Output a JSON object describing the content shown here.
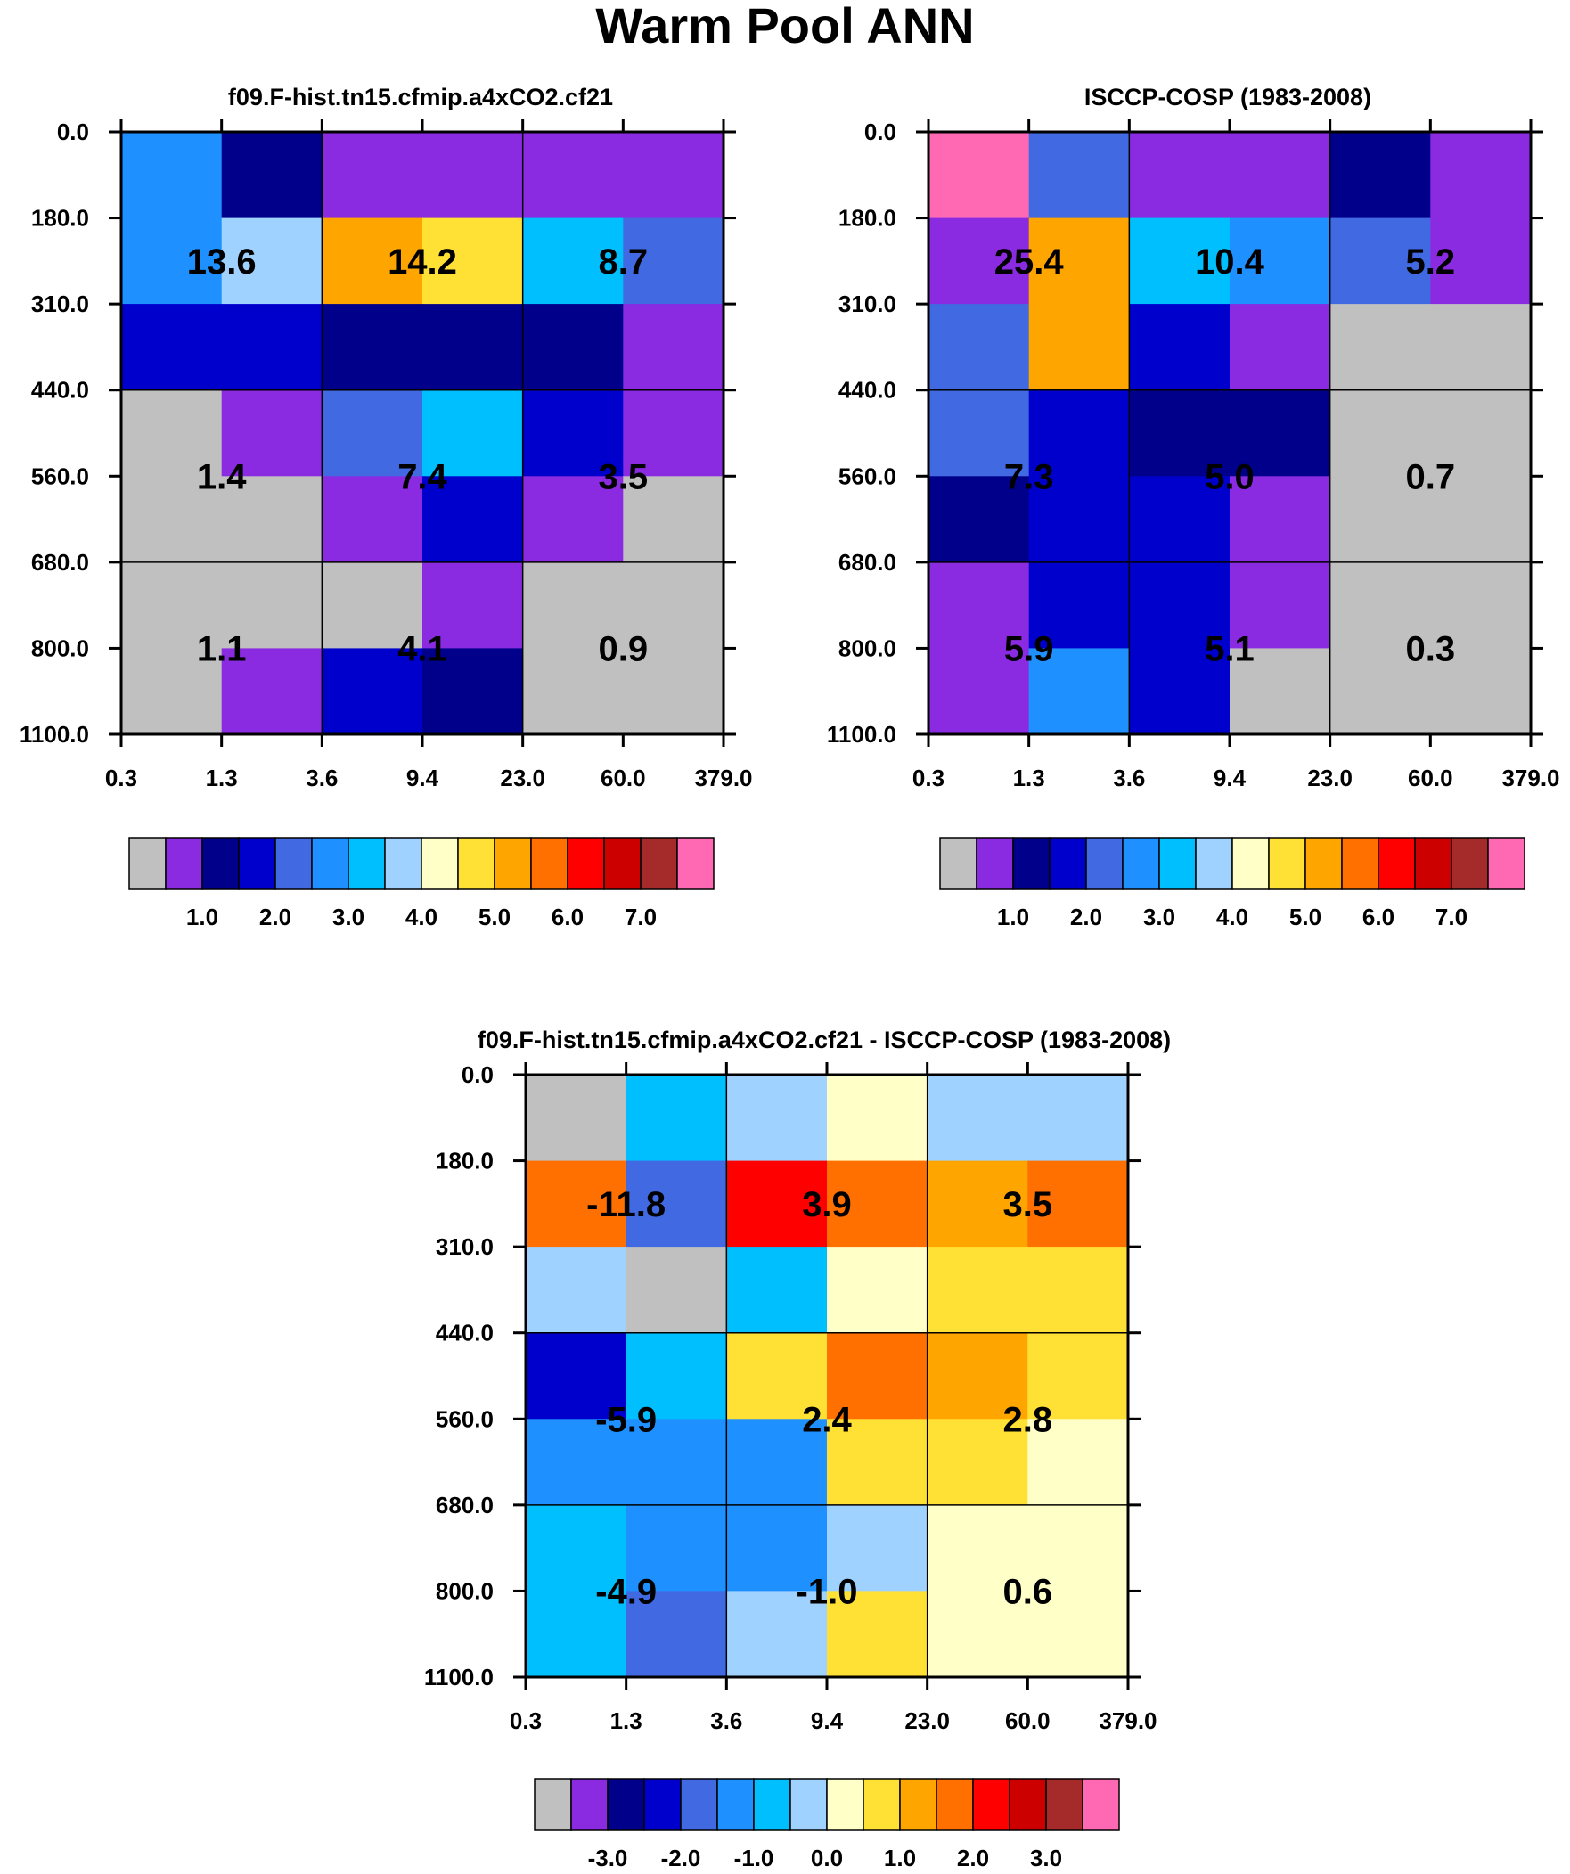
{
  "title": "Warm Pool ANN",
  "palette": {
    "abs": [
      "#c0c0c0",
      "#8a2be2",
      "#00008b",
      "#0000cd",
      "#4169e1",
      "#1e90ff",
      "#00bfff",
      "#a0d2ff",
      "#ffffc8",
      "#ffe135",
      "#ffa500",
      "#ff7000",
      "#ff0000",
      "#cd0000",
      "#a52a2a",
      "#ff69b4"
    ],
    "diff": [
      "#c0c0c0",
      "#8a2be2",
      "#00008b",
      "#0000cd",
      "#4169e1",
      "#1e90ff",
      "#00bfff",
      "#a0d2ff",
      "#ffffc8",
      "#ffe135",
      "#ffa500",
      "#ff7000",
      "#ff0000",
      "#cd0000",
      "#a52a2a",
      "#ff69b4"
    ]
  },
  "chart_data": [
    {
      "type": "heatmap",
      "title": "f09.F-hist.tn15.cfmip.a4xCO2.cf21",
      "x_ticks": [
        "0.3",
        "1.3",
        "3.6",
        "9.4",
        "23.0",
        "60.0",
        "379.0"
      ],
      "y_ticks": [
        "0.0",
        "180.0",
        "310.0",
        "440.0",
        "560.0",
        "680.0",
        "800.0",
        "1100.0"
      ],
      "cells": [
        [
          5,
          2,
          1,
          1,
          1,
          1
        ],
        [
          5,
          7,
          10,
          9,
          6,
          4
        ],
        [
          3,
          3,
          2,
          2,
          2,
          1
        ],
        [
          0,
          1,
          4,
          6,
          3,
          1
        ],
        [
          0,
          0,
          1,
          3,
          1,
          0
        ],
        [
          0,
          0,
          0,
          1,
          0,
          0
        ],
        [
          0,
          1,
          3,
          2,
          0,
          0
        ]
      ],
      "group_labels": [
        [
          "13.6",
          "14.2",
          "8.7"
        ],
        [
          "1.4",
          "7.4",
          "3.5"
        ],
        [
          "1.1",
          "4.1",
          "0.9"
        ]
      ],
      "colorbar": {
        "labels": [
          "1.0",
          "2.0",
          "3.0",
          "4.0",
          "5.0",
          "6.0",
          "7.0"
        ]
      }
    },
    {
      "type": "heatmap",
      "title": "ISCCP-COSP (1983-2008)",
      "x_ticks": [
        "0.3",
        "1.3",
        "3.6",
        "9.4",
        "23.0",
        "60.0",
        "379.0"
      ],
      "y_ticks": [
        "0.0",
        "180.0",
        "310.0",
        "440.0",
        "560.0",
        "680.0",
        "800.0",
        "1100.0"
      ],
      "cells": [
        [
          15,
          4,
          1,
          1,
          2,
          1
        ],
        [
          1,
          10,
          6,
          5,
          4,
          1
        ],
        [
          4,
          10,
          3,
          1,
          0,
          0
        ],
        [
          4,
          3,
          2,
          2,
          0,
          0
        ],
        [
          2,
          3,
          3,
          1,
          0,
          0
        ],
        [
          1,
          3,
          3,
          1,
          0,
          0
        ],
        [
          1,
          5,
          3,
          0,
          0,
          0
        ]
      ],
      "group_labels": [
        [
          "25.4",
          "10.4",
          "5.2"
        ],
        [
          "7.3",
          "5.0",
          "0.7"
        ],
        [
          "5.9",
          "5.1",
          "0.3"
        ]
      ],
      "colorbar": {
        "labels": [
          "1.0",
          "2.0",
          "3.0",
          "4.0",
          "5.0",
          "6.0",
          "7.0"
        ]
      }
    },
    {
      "type": "heatmap",
      "title": "f09.F-hist.tn15.cfmip.a4xCO2.cf21 - ISCCP-COSP (1983-2008)",
      "x_ticks": [
        "0.3",
        "1.3",
        "3.6",
        "9.4",
        "23.0",
        "60.0",
        "379.0"
      ],
      "y_ticks": [
        "0.0",
        "180.0",
        "310.0",
        "440.0",
        "560.0",
        "680.0",
        "800.0",
        "1100.0"
      ],
      "cells": [
        [
          0,
          6,
          7,
          8,
          7,
          7
        ],
        [
          11,
          4,
          12,
          11,
          10,
          11
        ],
        [
          7,
          0,
          6,
          8,
          9,
          9
        ],
        [
          3,
          6,
          9,
          11,
          10,
          9
        ],
        [
          5,
          5,
          5,
          9,
          9,
          8
        ],
        [
          6,
          5,
          5,
          7,
          8,
          8
        ],
        [
          6,
          4,
          7,
          9,
          8,
          8
        ]
      ],
      "group_labels": [
        [
          "-11.8",
          "3.9",
          "3.5"
        ],
        [
          "-5.9",
          "2.4",
          "2.8"
        ],
        [
          "-4.9",
          "-1.0",
          "0.6"
        ]
      ],
      "colorbar": {
        "labels": [
          "-3.0",
          "-2.0",
          "-1.0",
          "0.0",
          "1.0",
          "2.0",
          "3.0"
        ]
      }
    }
  ]
}
